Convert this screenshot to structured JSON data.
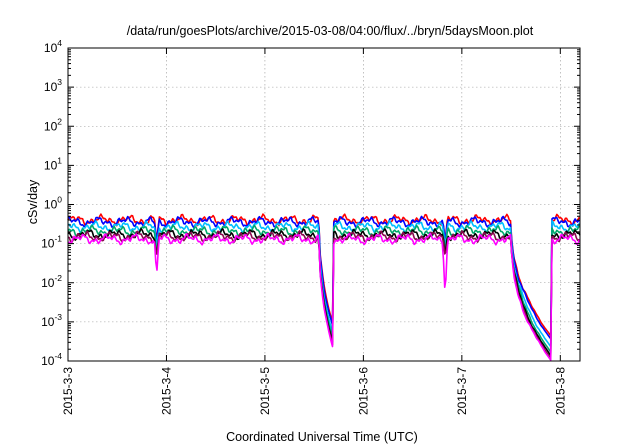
{
  "chart_data": {
    "type": "line",
    "title": "/data/run/goesPlots/archive/2015-03-08/04:00/flux/../bryn/5daysMoon.plot",
    "xlabel": "Coordinated Universal Time (UTC)",
    "ylabel": "cSv/day",
    "yscale": "log",
    "ylim": [
      0.0001,
      10000
    ],
    "xlim": [
      0,
      5.2
    ],
    "grid": true,
    "legend": "none",
    "y_ticks": [
      {
        "base": "10",
        "exp": "4",
        "value": 10000
      },
      {
        "base": "10",
        "exp": "3",
        "value": 1000
      },
      {
        "base": "10",
        "exp": "2",
        "value": 100
      },
      {
        "base": "10",
        "exp": "1",
        "value": 10
      },
      {
        "base": "10",
        "exp": "0",
        "value": 1
      },
      {
        "base": "10",
        "exp": "-1",
        "value": 0.1
      },
      {
        "base": "10",
        "exp": "-2",
        "value": 0.01
      },
      {
        "base": "10",
        "exp": "-3",
        "value": 0.001
      },
      {
        "base": "10",
        "exp": "-4",
        "value": 0.0001
      }
    ],
    "x_ticks": [
      {
        "label": "2015-3-3",
        "value": 0
      },
      {
        "label": "2015-3-4",
        "value": 1
      },
      {
        "label": "2015-3-5",
        "value": 2
      },
      {
        "label": "2015-3-6",
        "value": 3
      },
      {
        "label": "2015-3-7",
        "value": 4
      },
      {
        "label": "2015-3-8",
        "value": 5
      }
    ],
    "series": [
      {
        "color": "#ff0000",
        "base": 0.4,
        "dip_floor": 0.00042
      },
      {
        "color": "#0000ff",
        "base": 0.36,
        "dip_floor": 0.00035
      },
      {
        "color": "#00bfff",
        "base": 0.27,
        "dip_floor": 0.00022
      },
      {
        "color": "#00a86b",
        "base": 0.21,
        "dip_floor": 0.00016
      },
      {
        "color": "#000000",
        "base": 0.17,
        "dip_floor": 0.00013
      },
      {
        "color": "#8b0a50",
        "base": 0.15,
        "dip_floor": 0.00011
      },
      {
        "color": "#ff00ff",
        "base": 0.13,
        "dip_floor": 0.0001
      }
    ],
    "dips": [
      {
        "start": 2.55,
        "end": 2.69,
        "min": 0.00022
      },
      {
        "start": 4.5,
        "end": 4.91,
        "min": 0.0001
      }
    ],
    "spikes": [
      {
        "x": 0.9,
        "value": 0.015
      },
      {
        "x": 3.83,
        "value": 0.0045
      }
    ]
  }
}
